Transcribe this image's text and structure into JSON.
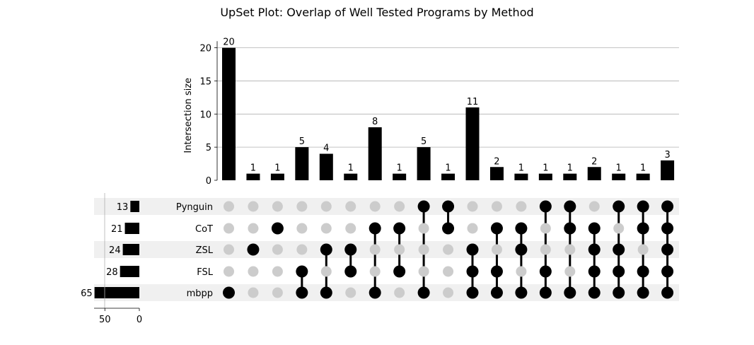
{
  "chart_data": {
    "type": "upset",
    "title": "UpSet Plot: Overlap of Well Tested Programs by Method",
    "ylabel": "Intersection size",
    "ylim": [
      0,
      21
    ],
    "yticks": [
      0,
      5,
      10,
      15,
      20
    ],
    "set_size_ticks": [
      50,
      0
    ],
    "sets": [
      {
        "name": "Pynguin",
        "size": 13
      },
      {
        "name": "CoT",
        "size": 21
      },
      {
        "name": "ZSL",
        "size": 24
      },
      {
        "name": "FSL",
        "size": 28
      },
      {
        "name": "mbpp",
        "size": 65
      }
    ],
    "intersections": [
      {
        "members": [
          "mbpp"
        ],
        "size": 20
      },
      {
        "members": [
          "ZSL"
        ],
        "size": 1
      },
      {
        "members": [
          "CoT"
        ],
        "size": 1
      },
      {
        "members": [
          "FSL",
          "mbpp"
        ],
        "size": 5
      },
      {
        "members": [
          "ZSL",
          "mbpp"
        ],
        "size": 4
      },
      {
        "members": [
          "ZSL",
          "FSL"
        ],
        "size": 1
      },
      {
        "members": [
          "CoT",
          "mbpp"
        ],
        "size": 8
      },
      {
        "members": [
          "CoT",
          "FSL"
        ],
        "size": 1
      },
      {
        "members": [
          "Pynguin",
          "mbpp"
        ],
        "size": 5
      },
      {
        "members": [
          "Pynguin",
          "CoT"
        ],
        "size": 1
      },
      {
        "members": [
          "ZSL",
          "FSL",
          "mbpp"
        ],
        "size": 11
      },
      {
        "members": [
          "CoT",
          "FSL",
          "mbpp"
        ],
        "size": 2
      },
      {
        "members": [
          "CoT",
          "ZSL",
          "mbpp"
        ],
        "size": 1
      },
      {
        "members": [
          "Pynguin",
          "FSL",
          "mbpp"
        ],
        "size": 1
      },
      {
        "members": [
          "Pynguin",
          "CoT",
          "mbpp"
        ],
        "size": 1
      },
      {
        "members": [
          "CoT",
          "ZSL",
          "FSL",
          "mbpp"
        ],
        "size": 2
      },
      {
        "members": [
          "Pynguin",
          "ZSL",
          "FSL",
          "mbpp"
        ],
        "size": 1
      },
      {
        "members": [
          "Pynguin",
          "CoT",
          "FSL",
          "mbpp"
        ],
        "size": 1
      },
      {
        "members": [
          "Pynguin",
          "CoT",
          "ZSL",
          "FSL",
          "mbpp"
        ],
        "size": 3
      }
    ],
    "grid": true,
    "colors": {
      "bar": "#000000",
      "active_dot": "#000000",
      "inactive_dot": "#cccccc",
      "stripe": "#f0f0f0",
      "grid": "#b0b0b0"
    }
  }
}
